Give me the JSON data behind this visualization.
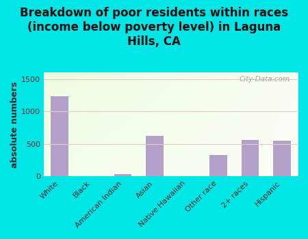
{
  "categories": [
    "White",
    "Black",
    "American Indian",
    "Asian",
    "Native Hawaiian",
    "Other race",
    "2+ races",
    "Hispanic"
  ],
  "values": [
    1230,
    0,
    35,
    620,
    0,
    330,
    565,
    555
  ],
  "bar_color": "#b3a0c8",
  "title": "Breakdown of poor residents within races\n(income below poverty level) in Laguna\nHills, CA",
  "ylabel": "absolute numbers",
  "ylim": [
    0,
    1600
  ],
  "yticks": [
    0,
    500,
    1000,
    1500
  ],
  "bg_color": "#00e5e5",
  "plot_bg_topleft": "#c8e6b0",
  "plot_bg_right": "#f8fdf4",
  "plot_bg_bottom": "#ffffff",
  "watermark": "City-Data.com",
  "title_fontsize": 12,
  "ylabel_fontsize": 9,
  "tick_fontsize": 8
}
